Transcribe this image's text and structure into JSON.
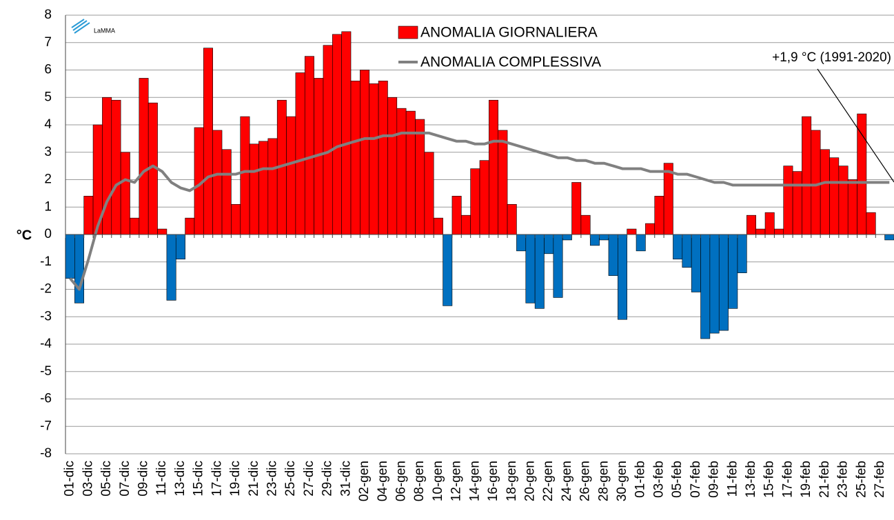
{
  "chart_data": {
    "type": "bar",
    "logo_text": "LaMMA",
    "ylabel": "°C",
    "annotation": "+1,9 °C (1991-2020)",
    "categories": [
      "01-dic",
      null,
      "03-dic",
      null,
      "05-dic",
      null,
      "07-dic",
      null,
      "09-dic",
      null,
      "11-dic",
      null,
      "13-dic",
      null,
      "15-dic",
      null,
      "17-dic",
      null,
      "19-dic",
      null,
      "21-dic",
      null,
      "23-dic",
      null,
      "25-dic",
      null,
      "27-dic",
      null,
      "29-dic",
      null,
      "31-dic",
      null,
      "02-gen",
      null,
      "04-gen",
      null,
      "06-gen",
      null,
      "08-gen",
      null,
      "10-gen",
      null,
      "12-gen",
      null,
      "14-gen",
      null,
      "16-gen",
      null,
      "18-gen",
      null,
      "20-gen",
      null,
      "22-gen",
      null,
      "24-gen",
      null,
      "26-gen",
      null,
      "28-gen",
      null,
      "30-gen",
      null,
      "01-feb",
      null,
      "03-feb",
      null,
      "05-feb",
      null,
      "07-feb",
      null,
      "09-feb",
      null,
      "11-feb",
      null,
      "13-feb",
      null,
      "15-feb",
      null,
      "17-feb",
      null,
      "19-feb",
      null,
      "21-feb",
      null,
      "23-feb",
      null,
      "25-feb",
      null,
      "27-feb",
      null
    ],
    "series": [
      {
        "name": "ANOMALIA GIORNALIERA",
        "color": "#ff0000",
        "negative_color": "#0070c0",
        "values": [
          -1.6,
          -2.5,
          1.4,
          4.0,
          5.0,
          4.9,
          3.0,
          0.6,
          5.7,
          4.8,
          0.2,
          -2.4,
          -0.9,
          0.6,
          3.9,
          6.8,
          3.8,
          3.1,
          1.1,
          4.3,
          3.3,
          3.4,
          3.5,
          4.9,
          4.3,
          5.9,
          6.5,
          5.7,
          6.9,
          7.3,
          7.4,
          5.6,
          6.0,
          5.5,
          5.6,
          5.0,
          4.6,
          4.5,
          4.2,
          3.0,
          0.6,
          -2.6,
          1.4,
          0.7,
          2.4,
          2.7,
          4.9,
          3.8,
          1.1,
          -0.6,
          -2.5,
          -2.7,
          -0.7,
          -2.3,
          -0.2,
          1.9,
          0.7,
          -0.4,
          -0.2,
          -1.5,
          -3.1,
          0.2,
          -0.6,
          0.4,
          1.4,
          2.6,
          -0.9,
          -1.2,
          -2.1,
          -3.8,
          -3.6,
          -3.5,
          -2.7,
          -1.4,
          0.7,
          0.2,
          0.8,
          0.2,
          2.5,
          2.3,
          4.3,
          3.8,
          3.1,
          2.8,
          2.5,
          2.0,
          4.4,
          0.8,
          0.0,
          -0.2
        ]
      },
      {
        "name": "ANOMALIA COMPLESSIVA",
        "color": "#808080",
        "values": [
          -1.6,
          -2.0,
          -0.9,
          0.3,
          1.2,
          1.8,
          2.0,
          1.9,
          2.3,
          2.5,
          2.3,
          1.9,
          1.7,
          1.6,
          1.8,
          2.1,
          2.2,
          2.2,
          2.2,
          2.3,
          2.3,
          2.4,
          2.4,
          2.5,
          2.6,
          2.7,
          2.8,
          2.9,
          3.0,
          3.2,
          3.3,
          3.4,
          3.5,
          3.5,
          3.6,
          3.6,
          3.7,
          3.7,
          3.7,
          3.7,
          3.6,
          3.5,
          3.4,
          3.4,
          3.3,
          3.3,
          3.4,
          3.4,
          3.3,
          3.2,
          3.1,
          3.0,
          2.9,
          2.8,
          2.8,
          2.7,
          2.7,
          2.6,
          2.6,
          2.5,
          2.4,
          2.4,
          2.4,
          2.3,
          2.3,
          2.3,
          2.2,
          2.2,
          2.1,
          2.0,
          1.9,
          1.9,
          1.8,
          1.8,
          1.8,
          1.8,
          1.8,
          1.8,
          1.8,
          1.8,
          1.8,
          1.8,
          1.9,
          1.9,
          1.9,
          1.9,
          1.9,
          1.9,
          1.9,
          1.9
        ]
      }
    ],
    "ylim": [
      -8,
      8
    ],
    "yticks": [
      -8,
      -7,
      -6,
      -5,
      -4,
      -3,
      -2,
      -1,
      0,
      1,
      2,
      3,
      4,
      5,
      6,
      7,
      8
    ],
    "grid": true
  }
}
